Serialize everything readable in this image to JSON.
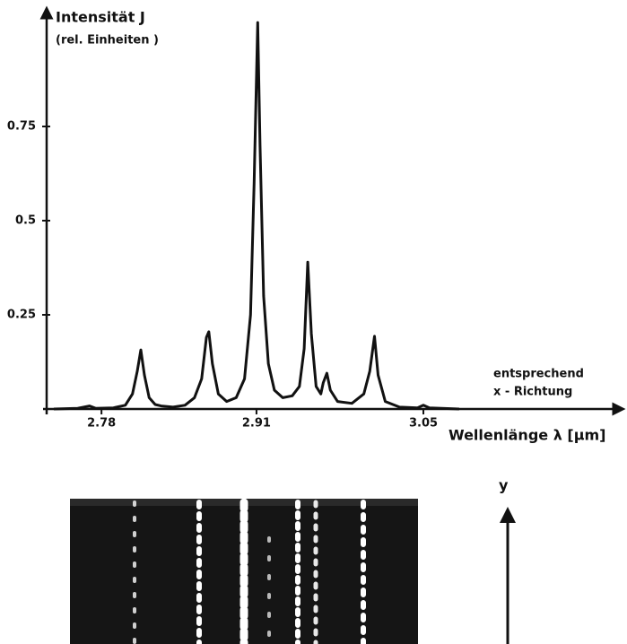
{
  "chart_data": {
    "type": "line",
    "title": "Intensität  J",
    "subtitle": "(rel. Einheiten )",
    "x_label": "Wellenlänge λ [µm]",
    "annotations": [
      "entsprechend",
      "x - Richtung",
      "y"
    ],
    "x": [
      2.74,
      2.76,
      2.77,
      2.775,
      2.79,
      2.8,
      2.806,
      2.81,
      2.813,
      2.816,
      2.82,
      2.825,
      2.83,
      2.84,
      2.85,
      2.858,
      2.864,
      2.868,
      2.87,
      2.873,
      2.878,
      2.885,
      2.893,
      2.9,
      2.905,
      2.908,
      2.911,
      2.913,
      2.916,
      2.92,
      2.925,
      2.932,
      2.94,
      2.946,
      2.95,
      2.953,
      2.956,
      2.96,
      2.964,
      2.966,
      2.969,
      2.972,
      2.978,
      2.99,
      3.0,
      3.005,
      3.009,
      3.012,
      3.018,
      3.03,
      3.045,
      3.05,
      3.055,
      3.08
    ],
    "values": [
      0.0,
      0.002,
      0.008,
      0.002,
      0.003,
      0.01,
      0.04,
      0.1,
      0.157,
      0.09,
      0.03,
      0.012,
      0.008,
      0.005,
      0.01,
      0.03,
      0.08,
      0.19,
      0.205,
      0.12,
      0.04,
      0.02,
      0.03,
      0.08,
      0.25,
      0.6,
      1.026,
      0.7,
      0.3,
      0.12,
      0.05,
      0.03,
      0.035,
      0.06,
      0.16,
      0.39,
      0.2,
      0.06,
      0.04,
      0.07,
      0.095,
      0.05,
      0.02,
      0.015,
      0.04,
      0.1,
      0.193,
      0.09,
      0.02,
      0.005,
      0.003,
      0.01,
      0.003,
      0.0
    ],
    "color": "#111111",
    "xlim": [
      2.734,
      3.214
    ],
    "ylim": [
      0,
      1.05
    ],
    "xticks": [
      2.78,
      2.91,
      3.05
    ],
    "yticks": [
      0.25,
      0.5,
      0.75
    ],
    "grid": false
  }
}
